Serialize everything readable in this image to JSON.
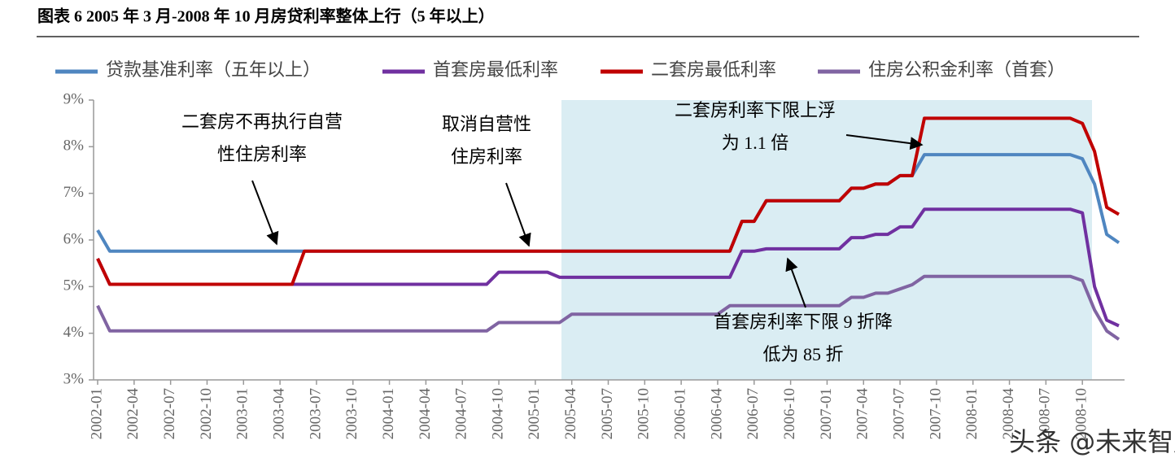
{
  "chart_data": {
    "type": "line",
    "title": "图表 6 2005 年 3 月-2008 年 10 月房贷利率整体上行（5 年以上）",
    "categories": [
      "2002-01",
      null,
      null,
      "2002-04",
      null,
      null,
      "2002-07",
      null,
      null,
      "2002-10",
      null,
      null,
      "2003-01",
      null,
      null,
      "2003-04",
      null,
      null,
      "2003-07",
      null,
      null,
      "2003-10",
      null,
      null,
      "2004-01",
      null,
      null,
      "2004-04",
      null,
      null,
      "2004-07",
      null,
      null,
      "2004-10",
      null,
      null,
      "2005-01",
      null,
      null,
      "2005-04",
      null,
      null,
      "2005-07",
      null,
      null,
      "2005-10",
      null,
      null,
      "2006-01",
      null,
      null,
      "2006-04",
      null,
      null,
      "2006-07",
      null,
      null,
      "2006-10",
      null,
      null,
      "2007-01",
      null,
      null,
      "2007-04",
      null,
      null,
      "2007-07",
      null,
      null,
      "2007-10",
      null,
      null,
      "2008-01",
      null,
      null,
      "2008-04",
      null,
      null,
      "2008-07",
      null,
      null,
      "2008-10",
      null,
      null,
      null
    ],
    "series": [
      {
        "name": "贷款基准利率（五年以上）",
        "color": "#4f86c0",
        "values": [
          6.21,
          5.76,
          5.76,
          5.76,
          5.76,
          5.76,
          5.76,
          5.76,
          5.76,
          5.76,
          5.76,
          5.76,
          5.76,
          5.76,
          5.76,
          5.76,
          5.76,
          5.76,
          5.76,
          5.76,
          5.76,
          5.76,
          5.76,
          5.76,
          5.76,
          5.76,
          5.76,
          5.76,
          5.76,
          5.76,
          5.76,
          5.76,
          5.76,
          5.76,
          5.76,
          5.76,
          5.76,
          5.76,
          5.76,
          5.76,
          5.76,
          5.76,
          5.76,
          5.76,
          5.76,
          5.76,
          5.76,
          5.76,
          5.76,
          5.76,
          5.76,
          5.76,
          5.76,
          6.4,
          6.4,
          6.84,
          6.84,
          6.84,
          6.84,
          6.84,
          6.84,
          6.84,
          7.11,
          7.11,
          7.2,
          7.2,
          7.38,
          7.38,
          7.83,
          7.83,
          7.83,
          7.83,
          7.83,
          7.83,
          7.83,
          7.83,
          7.83,
          7.83,
          7.83,
          7.83,
          7.83,
          7.74,
          7.2,
          6.12,
          5.94
        ]
      },
      {
        "name": "首套房最低利率",
        "color": "#7030a0",
        "values": [
          5.6,
          5.05,
          5.05,
          5.05,
          5.05,
          5.05,
          5.05,
          5.05,
          5.05,
          5.05,
          5.05,
          5.05,
          5.05,
          5.05,
          5.05,
          5.05,
          5.05,
          5.05,
          5.05,
          5.05,
          5.05,
          5.05,
          5.05,
          5.05,
          5.05,
          5.05,
          5.05,
          5.05,
          5.05,
          5.05,
          5.05,
          5.05,
          5.05,
          5.31,
          5.31,
          5.31,
          5.31,
          5.31,
          5.2,
          5.2,
          5.2,
          5.2,
          5.2,
          5.2,
          5.2,
          5.2,
          5.2,
          5.2,
          5.2,
          5.2,
          5.2,
          5.2,
          5.2,
          5.76,
          5.76,
          5.81,
          5.81,
          5.81,
          5.81,
          5.81,
          5.81,
          5.81,
          6.05,
          6.05,
          6.12,
          6.12,
          6.28,
          6.28,
          6.66,
          6.66,
          6.66,
          6.66,
          6.66,
          6.66,
          6.66,
          6.66,
          6.66,
          6.66,
          6.66,
          6.66,
          6.66,
          6.58,
          5.0,
          4.28,
          4.16
        ]
      },
      {
        "name": "二套房最低利率",
        "color": "#c00000",
        "values": [
          5.6,
          5.05,
          5.05,
          5.05,
          5.05,
          5.05,
          5.05,
          5.05,
          5.05,
          5.05,
          5.05,
          5.05,
          5.05,
          5.05,
          5.05,
          5.05,
          5.05,
          5.76,
          5.76,
          5.76,
          5.76,
          5.76,
          5.76,
          5.76,
          5.76,
          5.76,
          5.76,
          5.76,
          5.76,
          5.76,
          5.76,
          5.76,
          5.76,
          5.76,
          5.76,
          5.76,
          5.76,
          5.76,
          5.76,
          5.76,
          5.76,
          5.76,
          5.76,
          5.76,
          5.76,
          5.76,
          5.76,
          5.76,
          5.76,
          5.76,
          5.76,
          5.76,
          5.76,
          6.4,
          6.4,
          6.84,
          6.84,
          6.84,
          6.84,
          6.84,
          6.84,
          6.84,
          7.11,
          7.11,
          7.2,
          7.2,
          7.38,
          7.38,
          8.61,
          8.61,
          8.61,
          8.61,
          8.61,
          8.61,
          8.61,
          8.61,
          8.61,
          8.61,
          8.61,
          8.61,
          8.61,
          8.5,
          7.9,
          6.7,
          6.55
        ]
      },
      {
        "name": "住房公积金利率（首套）",
        "color": "#8064a2",
        "values": [
          4.59,
          4.05,
          4.05,
          4.05,
          4.05,
          4.05,
          4.05,
          4.05,
          4.05,
          4.05,
          4.05,
          4.05,
          4.05,
          4.05,
          4.05,
          4.05,
          4.05,
          4.05,
          4.05,
          4.05,
          4.05,
          4.05,
          4.05,
          4.05,
          4.05,
          4.05,
          4.05,
          4.05,
          4.05,
          4.05,
          4.05,
          4.05,
          4.05,
          4.23,
          4.23,
          4.23,
          4.23,
          4.23,
          4.23,
          4.41,
          4.41,
          4.41,
          4.41,
          4.41,
          4.41,
          4.41,
          4.41,
          4.41,
          4.41,
          4.41,
          4.41,
          4.41,
          4.59,
          4.59,
          4.59,
          4.59,
          4.59,
          4.59,
          4.59,
          4.59,
          4.59,
          4.59,
          4.77,
          4.77,
          4.86,
          4.86,
          4.95,
          5.04,
          5.22,
          5.22,
          5.22,
          5.22,
          5.22,
          5.22,
          5.22,
          5.22,
          5.22,
          5.22,
          5.22,
          5.22,
          5.22,
          5.13,
          4.5,
          4.05,
          3.87
        ]
      }
    ],
    "ylim": [
      3,
      9
    ],
    "yticks": [
      {
        "value": 3,
        "label": "3%"
      },
      {
        "value": 4,
        "label": "4%"
      },
      {
        "value": 5,
        "label": "5%"
      },
      {
        "value": 6,
        "label": "6%"
      },
      {
        "value": 7,
        "label": "7%"
      },
      {
        "value": 8,
        "label": "8%"
      },
      {
        "value": 9,
        "label": "9%"
      }
    ],
    "annotations": [
      [
        "二套房不再执行自营",
        "性住房利率"
      ],
      [
        "取消自营性",
        "住房利率"
      ],
      [
        "二套房利率下限上浮",
        "为 1.1 倍"
      ],
      [
        "首套房利率下限 9 折降",
        "低为 85 折"
      ]
    ],
    "watermark": "头条 @未来智库"
  }
}
